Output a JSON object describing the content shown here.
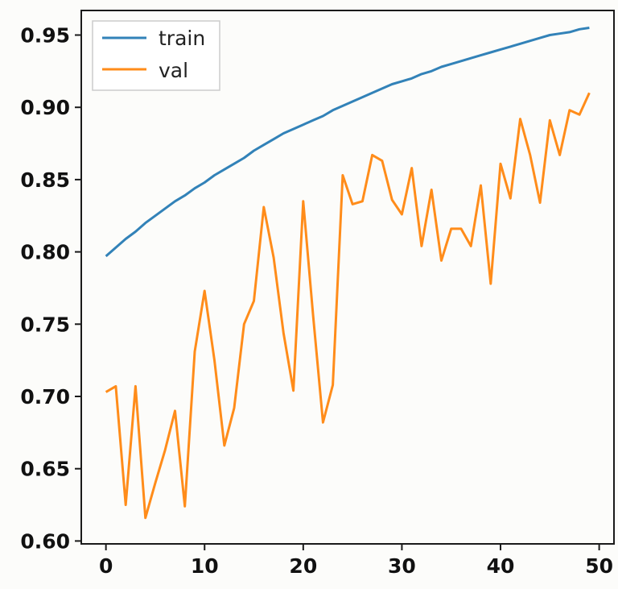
{
  "chart_data": {
    "type": "line",
    "title": "",
    "xlabel": "",
    "ylabel": "",
    "xlim": [
      -2.5,
      51.5
    ],
    "ylim": [
      0.598,
      0.967
    ],
    "x_ticks": [
      0,
      10,
      20,
      30,
      40,
      50
    ],
    "x_tick_labels": [
      "0",
      "10",
      "20",
      "30",
      "40",
      "50"
    ],
    "y_ticks": [
      0.6,
      0.65,
      0.7,
      0.75,
      0.8,
      0.85,
      0.9,
      0.95
    ],
    "y_tick_labels": [
      "0.60",
      "0.65",
      "0.70",
      "0.75",
      "0.80",
      "0.85",
      "0.90",
      "0.95"
    ],
    "grid": false,
    "legend_position": "top-left",
    "x": [
      0,
      1,
      2,
      3,
      4,
      5,
      6,
      7,
      8,
      9,
      10,
      11,
      12,
      13,
      14,
      15,
      16,
      17,
      18,
      19,
      20,
      21,
      22,
      23,
      24,
      25,
      26,
      27,
      28,
      29,
      30,
      31,
      32,
      33,
      34,
      35,
      36,
      37,
      38,
      39,
      40,
      41,
      42,
      43,
      44,
      45,
      46,
      47,
      48,
      49
    ],
    "series": [
      {
        "name": "train",
        "color": "#3282b8",
        "values": [
          0.797,
          0.803,
          0.809,
          0.814,
          0.82,
          0.825,
          0.83,
          0.835,
          0.839,
          0.844,
          0.848,
          0.853,
          0.857,
          0.861,
          0.865,
          0.87,
          0.874,
          0.878,
          0.882,
          0.885,
          0.888,
          0.891,
          0.894,
          0.898,
          0.901,
          0.904,
          0.907,
          0.91,
          0.913,
          0.916,
          0.918,
          0.92,
          0.923,
          0.925,
          0.928,
          0.93,
          0.932,
          0.934,
          0.936,
          0.938,
          0.94,
          0.942,
          0.944,
          0.946,
          0.948,
          0.95,
          0.951,
          0.952,
          0.954,
          0.955
        ]
      },
      {
        "name": "val",
        "color": "#ff8c1a",
        "values": [
          0.703,
          0.707,
          0.625,
          0.707,
          0.616,
          0.64,
          0.663,
          0.69,
          0.624,
          0.731,
          0.773,
          0.725,
          0.666,
          0.692,
          0.75,
          0.766,
          0.831,
          0.796,
          0.744,
          0.704,
          0.835,
          0.756,
          0.682,
          0.708,
          0.853,
          0.833,
          0.835,
          0.867,
          0.863,
          0.836,
          0.826,
          0.858,
          0.804,
          0.843,
          0.794,
          0.816,
          0.816,
          0.804,
          0.846,
          0.778,
          0.861,
          0.837,
          0.892,
          0.867,
          0.834,
          0.891,
          0.867,
          0.898,
          0.895,
          0.91
        ]
      }
    ]
  }
}
